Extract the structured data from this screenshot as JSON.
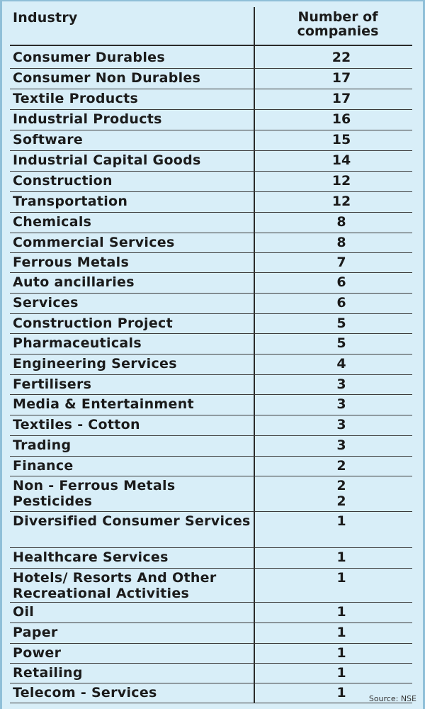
{
  "table": {
    "header_industry": "Industry",
    "header_count_line1": "Number of",
    "header_count_line2": "companies",
    "rows": [
      {
        "industry": "Consumer Durables",
        "count": "22"
      },
      {
        "industry": "Consumer Non Durables",
        "count": "17"
      },
      {
        "industry": "Textile Products",
        "count": "17"
      },
      {
        "industry": "Industrial Products",
        "count": "16"
      },
      {
        "industry": "Software",
        "count": "15"
      },
      {
        "industry": "Industrial Capital Goods",
        "count": "14"
      },
      {
        "industry": "Construction",
        "count": "12"
      },
      {
        "industry": "Transportation",
        "count": "12"
      },
      {
        "industry": "Chemicals",
        "count": "8"
      },
      {
        "industry": "Commercial Services",
        "count": "8"
      },
      {
        "industry": "Ferrous Metals",
        "count": "7"
      },
      {
        "industry": "Auto ancillaries",
        "count": "6"
      },
      {
        "industry": "Services",
        "count": "6"
      },
      {
        "industry": "Construction Project",
        "count": "5"
      },
      {
        "industry": "Pharmaceuticals",
        "count": "5"
      },
      {
        "industry": "Engineering Services",
        "count": "4"
      },
      {
        "industry": "Fertilisers",
        "count": "3"
      },
      {
        "industry": "Media & Entertainment",
        "count": "3"
      },
      {
        "industry": "Textiles - Cotton",
        "count": "3"
      },
      {
        "industry": "Trading",
        "count": "3"
      },
      {
        "industry": "Finance",
        "count": "2"
      },
      {
        "industry": "Non - Ferrous Metals",
        "count": "2"
      },
      {
        "industry": "Pesticides",
        "count": "2"
      },
      {
        "industry": "Diversified Consumer Services",
        "count": "1"
      },
      {
        "industry": "Healthcare Services",
        "count": "1"
      },
      {
        "industry": "Hotels/ Resorts And Other Recreational Activities",
        "count": "1"
      },
      {
        "industry": "Oil",
        "count": "1"
      },
      {
        "industry": "Paper",
        "count": "1"
      },
      {
        "industry": "Power",
        "count": "1"
      },
      {
        "industry": "Retailing",
        "count": "1"
      },
      {
        "industry": "Telecom - Services",
        "count": "1"
      }
    ],
    "source": "Source: NSE"
  }
}
